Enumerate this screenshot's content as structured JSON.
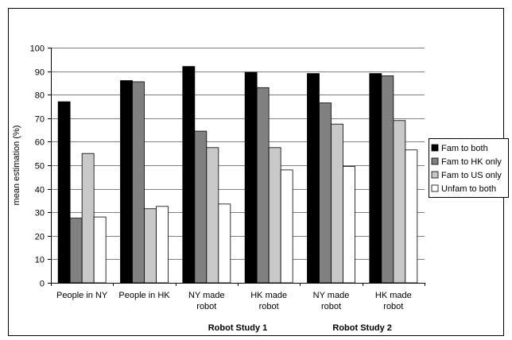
{
  "chart_data": {
    "type": "bar",
    "title": "",
    "ylabel": "mean estimation (%)",
    "ylim": [
      0,
      100
    ],
    "ytick_step": 10,
    "grid": true,
    "legend_position": "right",
    "categories": [
      [
        "People in NY"
      ],
      [
        "People in HK"
      ],
      [
        "NY made",
        "robot"
      ],
      [
        "HK made",
        "robot"
      ],
      [
        "NY made",
        "robot"
      ],
      [
        "HK made",
        "robot"
      ]
    ],
    "group_labels": [
      "Robot Study 1",
      "Robot Study 2"
    ],
    "series": [
      {
        "name": "Fam to both",
        "color": "#000000",
        "values": [
          77,
          86,
          92,
          89.5,
          89,
          89
        ]
      },
      {
        "name": "Fam to HK only",
        "color": "#808080",
        "values": [
          27.5,
          85.5,
          64.5,
          83,
          76.5,
          88
        ]
      },
      {
        "name": "Fam to US only",
        "color": "#c8c8c8",
        "values": [
          55,
          31.5,
          57.5,
          57.5,
          67.5,
          69
        ]
      },
      {
        "name": "Unfam to both",
        "color": "#ffffff",
        "values": [
          28,
          32.5,
          33.5,
          48,
          49.5,
          56.5
        ]
      }
    ]
  }
}
